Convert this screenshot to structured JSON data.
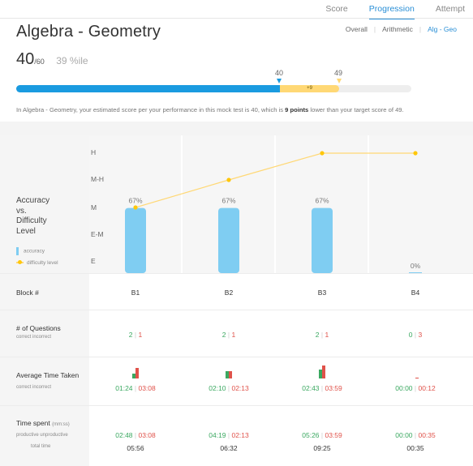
{
  "tabs": [
    "Score",
    "Progression",
    "Attempt"
  ],
  "active_tab": "Progression",
  "title": "Algebra - Geometry",
  "subnav": [
    "Overall",
    "Arithmetic",
    "Alg - Geo"
  ],
  "active_subnav": "Alg - Geo",
  "score": {
    "value": "40",
    "total": "/60",
    "percentile": "39 %ile"
  },
  "progress": {
    "estimated": 40,
    "target": 49,
    "max": 60,
    "estimated_label": "40",
    "target_label": "49",
    "gap_label": "+9"
  },
  "summary": {
    "before": "In Algebra - Geometry, your estimated score per your performance in this mock test is 40, which is ",
    "bold": "9 points",
    "after": " lower than your target score of 49."
  },
  "chart": {
    "title_lines": [
      "Accuracy",
      "vs.",
      "Difficulty",
      "Level"
    ],
    "levels": [
      "H",
      "M-H",
      "M",
      "E-M",
      "E"
    ],
    "legend_accuracy": "accuracy",
    "legend_difficulty": "difficulty level",
    "accent_blue": "#7fcdf2",
    "accent_yellow": "#ffd875"
  },
  "chart_data": {
    "type": "bar",
    "categories": [
      "B1",
      "B2",
      "B3",
      "B4"
    ],
    "series": [
      {
        "name": "accuracy",
        "values": [
          67,
          67,
          67,
          0
        ],
        "labels": [
          "67%",
          "67%",
          "67%",
          "0%"
        ]
      },
      {
        "name": "difficulty level",
        "type": "line",
        "values": [
          "M",
          "M-H",
          "H",
          "H"
        ]
      }
    ],
    "y_levels": [
      "E",
      "E-M",
      "M",
      "M-H",
      "H"
    ],
    "ylim": [
      0,
      100
    ],
    "legend": "left"
  },
  "rows": {
    "block_label": "Block #",
    "questions_label": "# of Questions",
    "questions_sub": "correct   incorrect",
    "time_label": "Average Time Taken",
    "time_sub": "correct   incorrect",
    "spent_label": "Time spent",
    "spent_unit": "(mm:ss)",
    "spent_sub": "productive   unproductive",
    "spent_total": "total time"
  },
  "blocks": [
    {
      "name": "B1",
      "correct": "2",
      "incorrect": "1",
      "avg_correct": "01:24",
      "avg_incorrect": "03:08",
      "productive": "02:48",
      "unproductive": "03:08",
      "total": "05:56"
    },
    {
      "name": "B2",
      "correct": "2",
      "incorrect": "1",
      "avg_correct": "02:10",
      "avg_incorrect": "02:13",
      "productive": "04:19",
      "unproductive": "02:13",
      "total": "06:32"
    },
    {
      "name": "B3",
      "correct": "2",
      "incorrect": "1",
      "avg_correct": "02:43",
      "avg_incorrect": "03:59",
      "productive": "05:26",
      "unproductive": "03:59",
      "total": "09:25"
    },
    {
      "name": "B4",
      "correct": "0",
      "incorrect": "3",
      "avg_correct": "00:00",
      "avg_incorrect": "00:12",
      "productive": "00:00",
      "unproductive": "00:35",
      "total": "00:35"
    }
  ]
}
